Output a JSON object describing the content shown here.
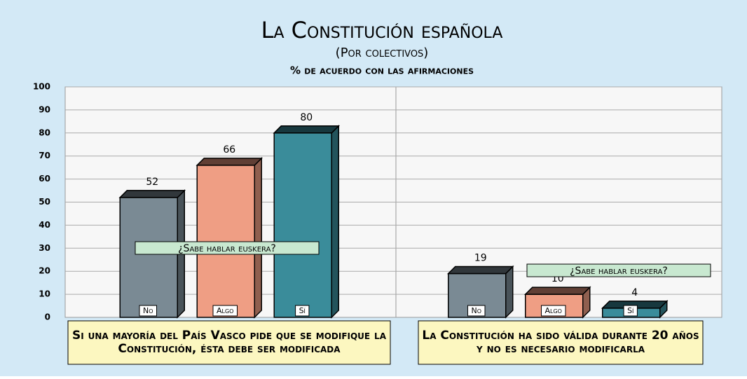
{
  "chart_data": {
    "type": "bar",
    "title": "La Constitución española",
    "subtitle": "(Por colectivos)",
    "y_label": "% de acuerdo con las afirmaciones",
    "annotation": "¿Sabe hablar euskera?",
    "categories": [
      "Si una mayoría del País Vasco pide que se modifique la Constitución, ésta debe ser modificada",
      "La Constitución ha sido válida durante 20 años y no es necesario modificarla"
    ],
    "series": [
      {
        "name": "No",
        "color": "#7a8a94",
        "values": [
          52,
          19
        ]
      },
      {
        "name": "Algo",
        "color": "#ef9e84",
        "values": [
          66,
          10
        ]
      },
      {
        "name": "Sí",
        "color": "#3a8c9a",
        "values": [
          80,
          4
        ]
      }
    ],
    "ylim": [
      0,
      100
    ],
    "yticks": [
      0,
      10,
      20,
      30,
      40,
      50,
      60,
      70,
      80,
      90,
      100
    ],
    "grid": true
  }
}
